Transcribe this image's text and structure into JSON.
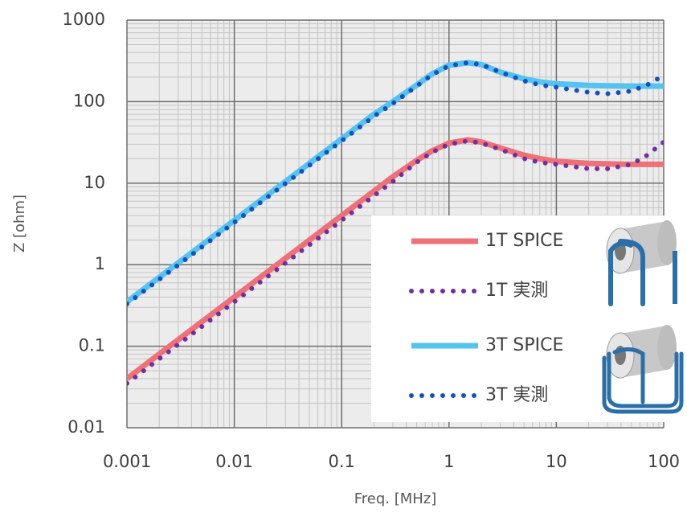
{
  "chart_data": {
    "type": "line",
    "xlabel": "Freq. [MHz]",
    "ylabel": "Z [ohm]",
    "xscale": "log",
    "yscale": "log",
    "grid": true,
    "xlim": [
      0.001,
      100
    ],
    "xticks": [
      0.001,
      0.01,
      0.1,
      1,
      10,
      100
    ],
    "ylim": [
      0.01,
      1000
    ],
    "yticks": [
      0.01,
      0.1,
      1,
      10,
      100,
      1000
    ],
    "legend": "lower right",
    "x": [
      0.001,
      0.002,
      0.005,
      0.01,
      0.02,
      0.05,
      0.1,
      0.2,
      0.3,
      0.5,
      0.7,
      1,
      1.5,
      2,
      3,
      5,
      7,
      10,
      20,
      30,
      50,
      70,
      100
    ],
    "series": [
      {
        "name": "1T SPICE",
        "color": "#f07078",
        "linestyle": "solid",
        "values": [
          0.04,
          0.08,
          0.2,
          0.4,
          0.8,
          2,
          4,
          8,
          12,
          19,
          25,
          31,
          34,
          32,
          27,
          22,
          20,
          18.5,
          17.5,
          17.2,
          17,
          17,
          17
        ]
      },
      {
        "name": "1T 実測",
        "color": "#7030a0",
        "linestyle": "dotted",
        "values": [
          0.035,
          0.07,
          0.175,
          0.35,
          0.7,
          1.75,
          3.5,
          7,
          10.5,
          18,
          24,
          30,
          33,
          31,
          26,
          20,
          18,
          17,
          15,
          15,
          17,
          22,
          32
        ]
      },
      {
        "name": "3T SPICE",
        "color": "#55c3ef",
        "linestyle": "solid",
        "values": [
          0.35,
          0.7,
          1.75,
          3.5,
          7,
          17.5,
          35,
          70,
          100,
          160,
          220,
          280,
          300,
          285,
          230,
          190,
          175,
          165,
          158,
          156,
          155,
          155,
          155
        ]
      },
      {
        "name": "3T 実測",
        "color": "#1450c0",
        "linestyle": "dotted",
        "values": [
          0.33,
          0.66,
          1.65,
          3.3,
          6.6,
          16.5,
          33,
          66,
          95,
          155,
          215,
          275,
          300,
          285,
          230,
          180,
          160,
          150,
          130,
          125,
          135,
          160,
          210
        ]
      }
    ]
  }
}
